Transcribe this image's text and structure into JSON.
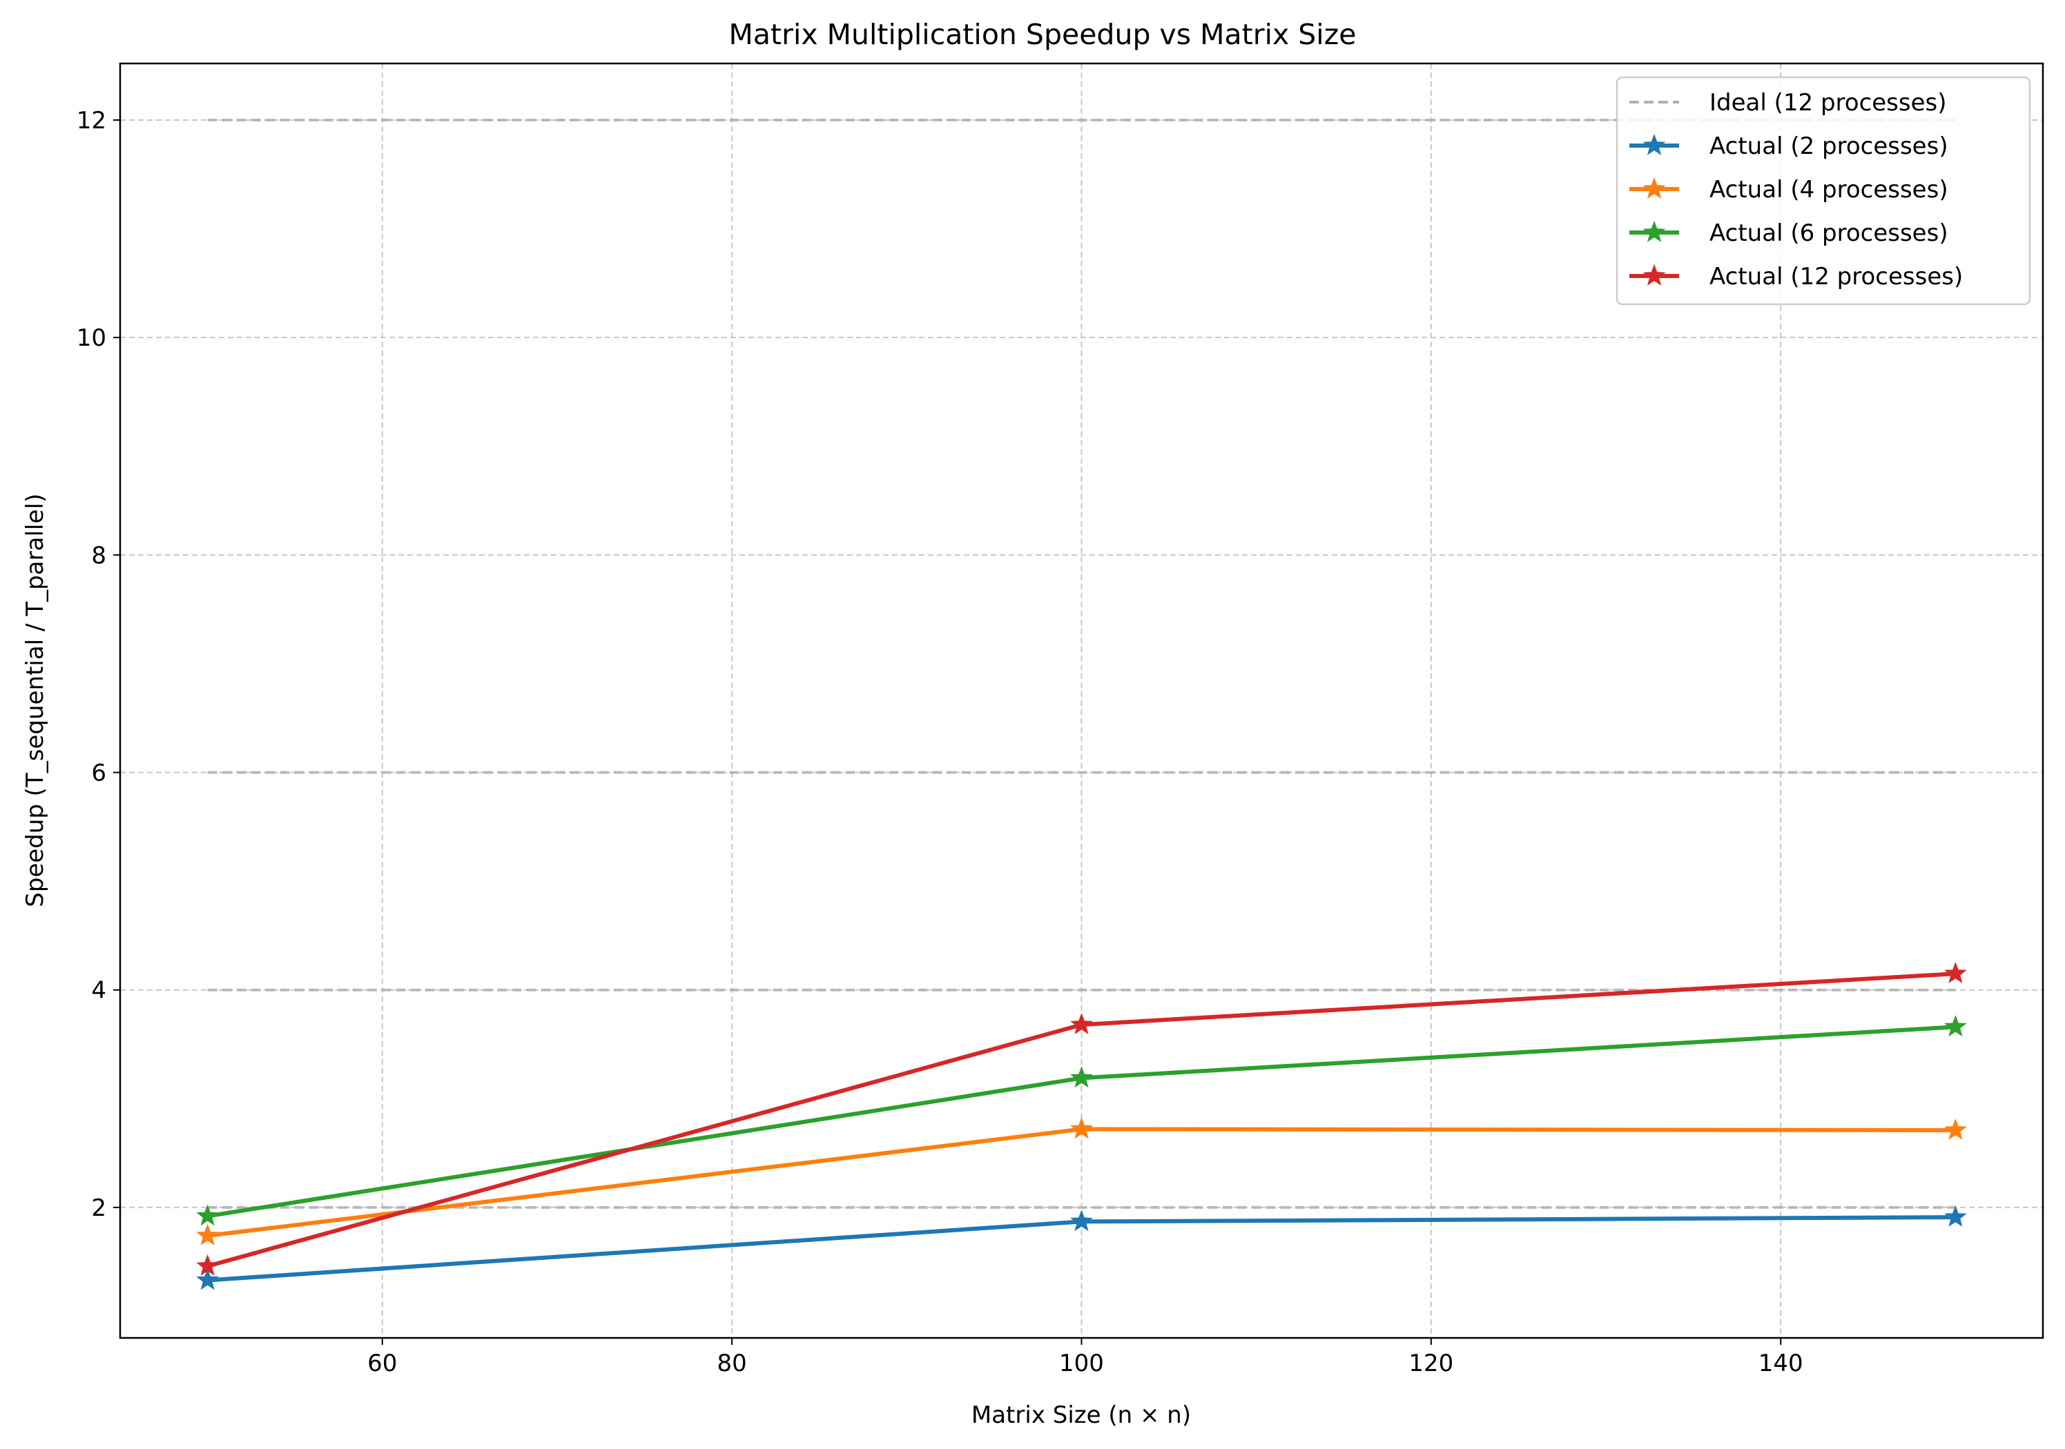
{
  "chart_data": {
    "type": "line",
    "title": "Matrix Multiplication Speedup vs Matrix Size",
    "xlabel": "Matrix Size (n × n)",
    "ylabel": "Speedup (T_sequential / T_parallel)",
    "xlim": [
      45,
      155
    ],
    "ylim": [
      0.8,
      12.52
    ],
    "xticks": [
      60,
      80,
      100,
      120,
      140
    ],
    "yticks": [
      2,
      4,
      6,
      8,
      10,
      12
    ],
    "grid": true,
    "legend_position": "top-right",
    "x": [
      50,
      100,
      150
    ],
    "ideal_lines": {
      "label": "Ideal (12 processes)",
      "color": "#b0b0b0",
      "x_range": [
        50,
        150
      ],
      "levels": [
        2,
        4,
        6,
        12
      ]
    },
    "series": [
      {
        "name": "Actual (2 processes)",
        "color": "#1f77b4",
        "values": [
          1.33,
          1.87,
          1.91
        ]
      },
      {
        "name": "Actual (4 processes)",
        "color": "#ff7f0e",
        "values": [
          1.74,
          2.72,
          2.71
        ]
      },
      {
        "name": "Actual (6 processes)",
        "color": "#2ca02c",
        "values": [
          1.92,
          3.19,
          3.66
        ]
      },
      {
        "name": "Actual (12 processes)",
        "color": "#d62728",
        "values": [
          1.46,
          3.68,
          4.15
        ]
      }
    ]
  }
}
